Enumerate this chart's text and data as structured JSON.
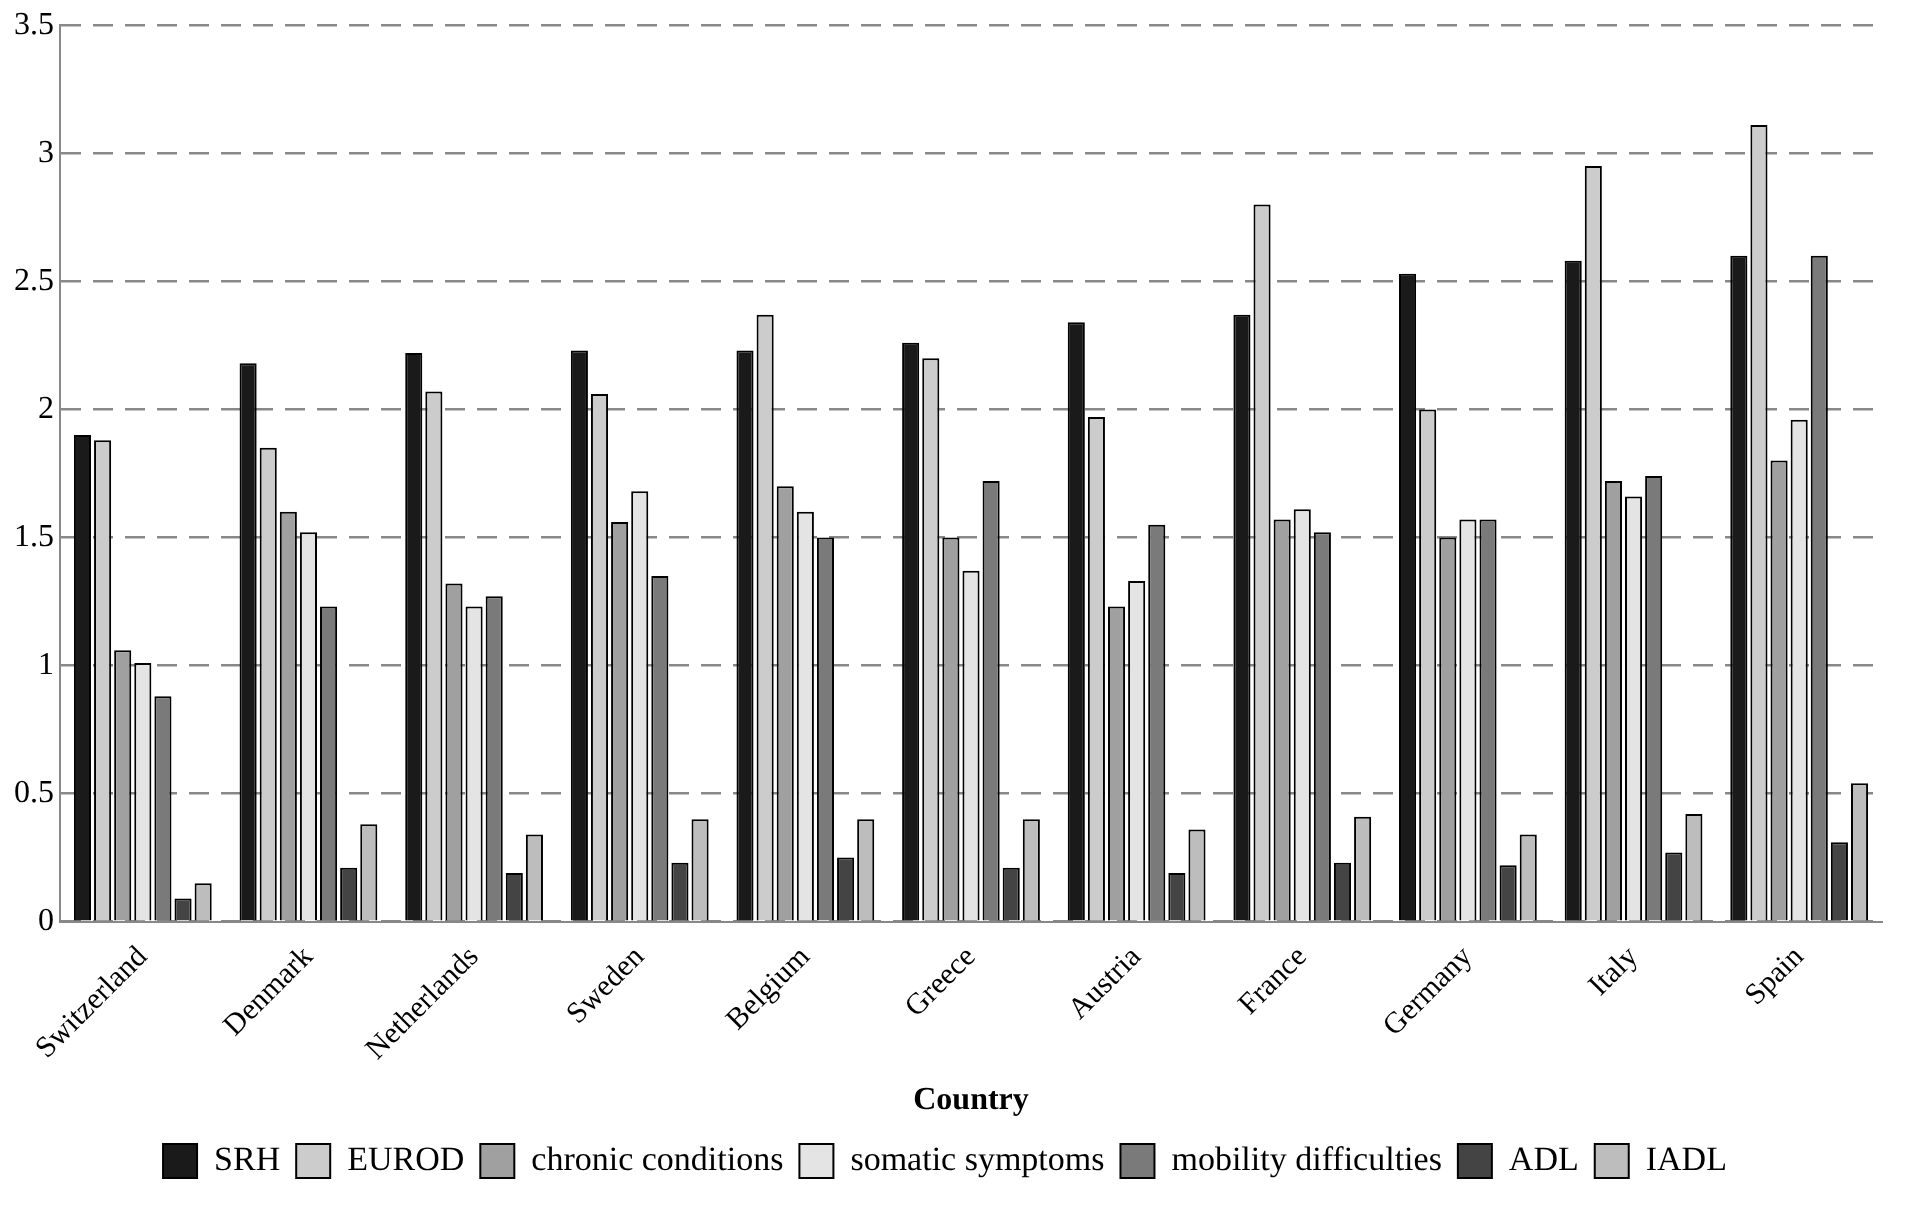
{
  "chart_data": {
    "type": "bar",
    "xlabel": "Country",
    "categories": [
      "Switzerland",
      "Denmark",
      "Netherlands",
      "Sweden",
      "Belgium",
      "Greece",
      "Austria",
      "France",
      "Germany",
      "Italy",
      "Spain"
    ],
    "series": [
      {
        "name": "SRH",
        "color": "#1a1a1a",
        "values": [
          1.9,
          2.18,
          2.22,
          2.23,
          2.23,
          2.26,
          2.34,
          2.37,
          2.53,
          2.58,
          2.6
        ]
      },
      {
        "name": "EUROD",
        "color": "#cccccc",
        "values": [
          1.88,
          1.85,
          2.07,
          2.06,
          2.37,
          2.2,
          1.97,
          2.8,
          2.0,
          2.95,
          3.11
        ]
      },
      {
        "name": "chronic conditions",
        "color": "#a0a0a0",
        "values": [
          1.06,
          1.6,
          1.32,
          1.56,
          1.7,
          1.5,
          1.23,
          1.57,
          1.5,
          1.72,
          1.8
        ]
      },
      {
        "name": "somatic symptoms",
        "color": "#e4e4e4",
        "values": [
          1.01,
          1.52,
          1.23,
          1.68,
          1.6,
          1.37,
          1.33,
          1.61,
          1.57,
          1.66,
          1.96
        ]
      },
      {
        "name": "mobility difficulties",
        "color": "#7a7a7a",
        "values": [
          0.88,
          1.23,
          1.27,
          1.35,
          1.5,
          1.72,
          1.55,
          1.52,
          1.57,
          1.74,
          2.6
        ]
      },
      {
        "name": "ADL",
        "color": "#444444",
        "values": [
          0.09,
          0.21,
          0.19,
          0.23,
          0.25,
          0.21,
          0.19,
          0.23,
          0.22,
          0.27,
          0.31
        ]
      },
      {
        "name": "IADL",
        "color": "#bdbdbd",
        "values": [
          0.15,
          0.38,
          0.34,
          0.4,
          0.4,
          0.4,
          0.36,
          0.41,
          0.34,
          0.42,
          0.54
        ]
      }
    ],
    "ylim": [
      0,
      3.5
    ],
    "yticks": [
      0,
      0.5,
      1,
      1.5,
      2,
      2.5,
      3,
      3.5
    ],
    "grid": "y",
    "legend": "bottom"
  }
}
